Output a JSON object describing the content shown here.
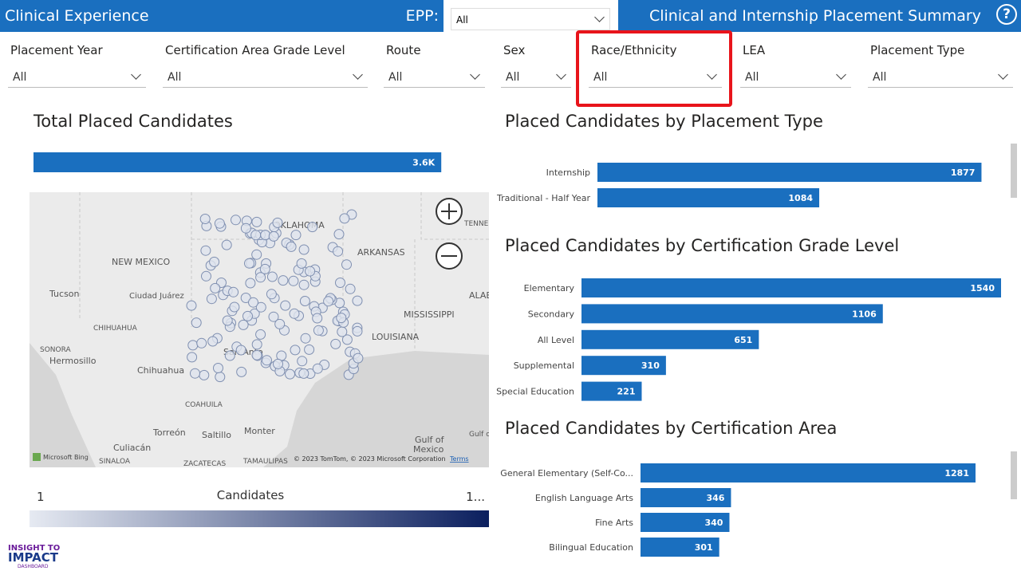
{
  "header": {
    "title": "Clinical Experience",
    "epp_label": "EPP:",
    "epp_value": "All",
    "summary_title": "Clinical and Internship Placement Summary",
    "help": "?"
  },
  "filters": [
    {
      "label": "Placement Year",
      "value": "All"
    },
    {
      "label": "Certification Area Grade Level",
      "value": "All"
    },
    {
      "label": "Route",
      "value": "All"
    },
    {
      "label": "Sex",
      "value": "All"
    },
    {
      "label": "Race/Ethnicity",
      "value": "All"
    },
    {
      "label": "LEA",
      "value": "All"
    },
    {
      "label": "Placement Type",
      "value": "All"
    }
  ],
  "chart_data": [
    {
      "type": "bar",
      "orientation": "horizontal",
      "title": "Total Placed Candidates",
      "categories": [
        null
      ],
      "values": [
        3600
      ],
      "value_labels": [
        "3.6K"
      ],
      "xlim": [
        0,
        4000
      ],
      "color": "#1a6fbf"
    },
    {
      "type": "bar",
      "orientation": "horizontal",
      "title": "Placed Candidates by Placement Type",
      "categories": [
        "Internship",
        "Traditional - Half Year"
      ],
      "values": [
        1877,
        1084
      ],
      "xlim": [
        0,
        2000
      ],
      "color": "#1a6fbf"
    },
    {
      "type": "bar",
      "orientation": "horizontal",
      "title": "Placed Candidates by Certification Grade Level",
      "categories": [
        "Elementary",
        "Secondary",
        "All Level",
        "Supplemental",
        "Special Education"
      ],
      "values": [
        1540,
        1106,
        651,
        310,
        221
      ],
      "xlim": [
        0,
        1540
      ],
      "color": "#1a6fbf"
    },
    {
      "type": "bar",
      "orientation": "horizontal",
      "title": "Placed Candidates by Certification Area",
      "categories": [
        "General Elementary (Self-Co...",
        "English Language Arts",
        "Fine Arts",
        "Bilingual Education"
      ],
      "values": [
        1281,
        346,
        340,
        301
      ],
      "xlim": [
        0,
        1400
      ],
      "color": "#1a6fbf"
    }
  ],
  "map": {
    "labels": [
      "OKLAHOMA",
      "ARKANSAS",
      "NEW MEXICO",
      "Tucson",
      "Ciudad Juárez",
      "CHIHUAHUA",
      "SONORA",
      "Hermosillo",
      "Chihuahua",
      "San Anto",
      "LOUISIANA",
      "MISSISSIPPI",
      "ALABA",
      "TENNE",
      "COAHUILA",
      "Torreón",
      "Saltillo",
      "Monter",
      "Culiacán",
      "SINALOA",
      "ZACATECAS",
      "TAMAULIPAS",
      "Gulf of",
      "Mexico",
      "Gulf o"
    ],
    "brand": "Microsoft Bing",
    "attribution": "© 2023 TomTom, © 2023 Microsoft Corporation",
    "terms": "Terms"
  },
  "map_legend": {
    "min": "1",
    "title": "Candidates",
    "max": "1..."
  },
  "logo": {
    "line1": "INSIGHT TO",
    "line2": "IMPACT",
    "line3": "DASHBOARD"
  }
}
